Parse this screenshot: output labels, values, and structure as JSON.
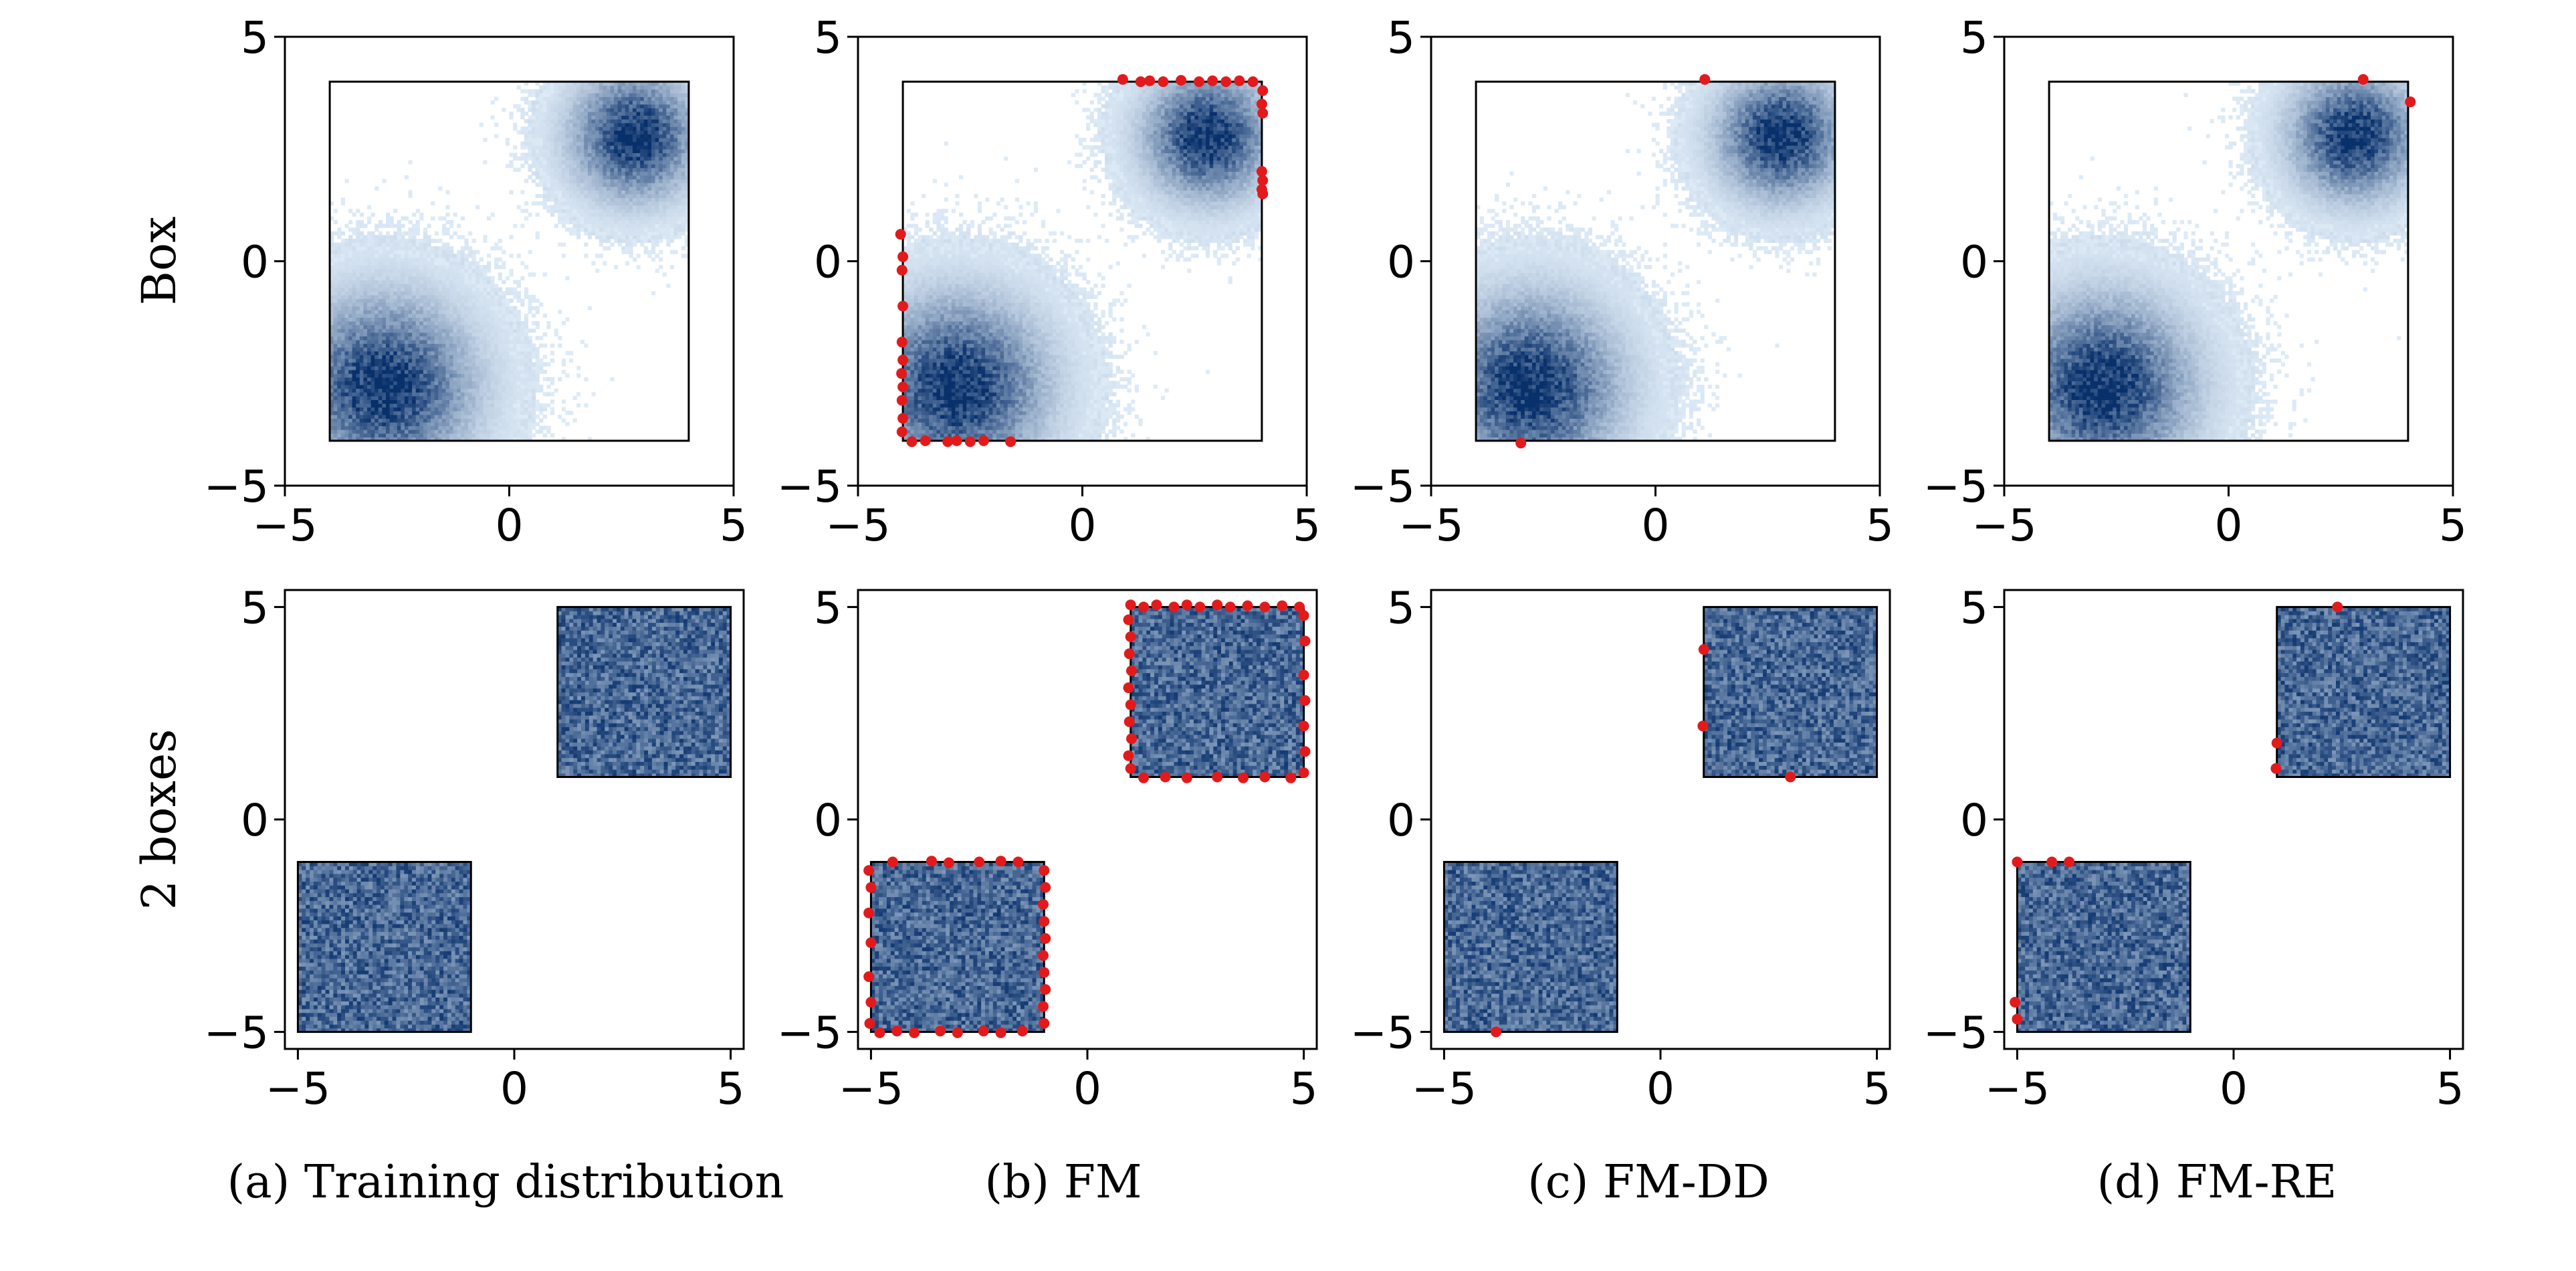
{
  "figure": {
    "row_labels": [
      "Box",
      "2 boxes"
    ],
    "captions": [
      "(a) Training distribution",
      "(b) FM",
      "(c) FM-DD",
      "(d) FM-RE"
    ]
  },
  "colors": {
    "density_light": "#deebf7",
    "density_dark": "#08306b",
    "sample_points": "#e31a1c",
    "box_outline": "#000000"
  },
  "chart_data": [
    {
      "panel": "Box / Training distribution",
      "type": "heatmap",
      "xlim": [
        -5,
        5
      ],
      "ylim": [
        -5,
        5
      ],
      "xticks": [
        -5,
        0,
        5
      ],
      "yticks": [
        -5,
        0,
        5
      ],
      "xtick_labels": [
        "−5",
        "0",
        "5"
      ],
      "ytick_labels": [
        "−5",
        "0",
        "5"
      ],
      "constraint": {
        "shape": "box",
        "x": [
          -4,
          4
        ],
        "y": [
          -4,
          4
        ]
      },
      "density": {
        "kind": "gaussian-mixture",
        "centers": [
          [
            -2.8,
            -2.8
          ],
          [
            2.8,
            2.8
          ]
        ],
        "spreads": [
          1.2,
          0.85
        ]
      },
      "violation_points": []
    },
    {
      "panel": "Box / FM",
      "type": "heatmap",
      "xlim": [
        -5,
        5
      ],
      "ylim": [
        -5,
        5
      ],
      "xticks": [
        -5,
        0,
        5
      ],
      "yticks": [
        -5,
        0,
        5
      ],
      "xtick_labels": [
        "−5",
        "0",
        "5"
      ],
      "ytick_labels": [
        "−5",
        "0",
        "5"
      ],
      "constraint": {
        "shape": "box",
        "x": [
          -4,
          4
        ],
        "y": [
          -4,
          4
        ]
      },
      "density": {
        "kind": "gaussian-mixture",
        "centers": [
          [
            -2.8,
            -2.8
          ],
          [
            2.8,
            2.8
          ]
        ],
        "spreads": [
          1.2,
          0.85
        ]
      },
      "violation_points": [
        [
          0.9,
          4.05
        ],
        [
          1.3,
          4.0
        ],
        [
          1.5,
          4.02
        ],
        [
          1.8,
          4.0
        ],
        [
          2.2,
          4.03
        ],
        [
          2.6,
          4.0
        ],
        [
          2.9,
          4.02
        ],
        [
          3.2,
          4.0
        ],
        [
          3.5,
          4.02
        ],
        [
          3.8,
          4.0
        ],
        [
          4.02,
          3.8
        ],
        [
          4.0,
          3.5
        ],
        [
          4.02,
          3.3
        ],
        [
          4.0,
          2.0
        ],
        [
          4.02,
          1.8
        ],
        [
          4.0,
          1.6
        ],
        [
          4.02,
          1.5
        ],
        [
          -4.05,
          0.6
        ],
        [
          -4.0,
          0.1
        ],
        [
          -4.02,
          -0.2
        ],
        [
          -4.0,
          -1.0
        ],
        [
          -4.02,
          -1.8
        ],
        [
          -4.0,
          -2.2
        ],
        [
          -4.03,
          -2.5
        ],
        [
          -4.0,
          -2.8
        ],
        [
          -4.02,
          -3.1
        ],
        [
          -4.0,
          -3.5
        ],
        [
          -4.02,
          -3.8
        ],
        [
          -3.8,
          -4.02
        ],
        [
          -3.5,
          -4.0
        ],
        [
          -3.0,
          -4.02
        ],
        [
          -2.8,
          -4.0
        ],
        [
          -2.5,
          -4.02
        ],
        [
          -2.2,
          -4.0
        ],
        [
          -1.6,
          -4.02
        ]
      ]
    },
    {
      "panel": "Box / FM-DD",
      "type": "heatmap",
      "xlim": [
        -5,
        5
      ],
      "ylim": [
        -5,
        5
      ],
      "xticks": [
        -5,
        0,
        5
      ],
      "yticks": [
        -5,
        0,
        5
      ],
      "xtick_labels": [
        "−5",
        "0",
        "5"
      ],
      "ytick_labels": [
        "−5",
        "0",
        "5"
      ],
      "constraint": {
        "shape": "box",
        "x": [
          -4,
          4
        ],
        "y": [
          -4,
          4
        ]
      },
      "density": {
        "kind": "gaussian-mixture",
        "centers": [
          [
            -2.8,
            -2.8
          ],
          [
            2.8,
            2.8
          ]
        ],
        "spreads": [
          1.2,
          0.85
        ]
      },
      "violation_points": [
        [
          1.1,
          4.05
        ],
        [
          -3.0,
          -4.05
        ]
      ]
    },
    {
      "panel": "Box / FM-RE",
      "type": "heatmap",
      "xlim": [
        -5,
        5
      ],
      "ylim": [
        -5,
        5
      ],
      "xticks": [
        -5,
        0,
        5
      ],
      "yticks": [
        -5,
        0,
        5
      ],
      "xtick_labels": [
        "−5",
        "0",
        "5"
      ],
      "ytick_labels": [
        "−5",
        "0",
        "5"
      ],
      "constraint": {
        "shape": "box",
        "x": [
          -4,
          4
        ],
        "y": [
          -4,
          4
        ]
      },
      "density": {
        "kind": "gaussian-mixture",
        "centers": [
          [
            -2.8,
            -2.8
          ],
          [
            2.8,
            2.8
          ]
        ],
        "spreads": [
          1.2,
          0.85
        ]
      },
      "violation_points": [
        [
          3.0,
          4.05
        ],
        [
          4.05,
          3.55
        ]
      ]
    },
    {
      "panel": "2 boxes / Training distribution",
      "type": "heatmap",
      "xlim": [
        -5.3,
        5.3
      ],
      "ylim": [
        -5.4,
        5.4
      ],
      "xticks": [
        -5,
        0,
        5
      ],
      "yticks": [
        -5,
        0,
        5
      ],
      "xtick_labels": [
        "−5",
        "0",
        "5"
      ],
      "ytick_labels": [
        "−5",
        "0",
        "5"
      ],
      "density": {
        "kind": "uniform-boxes",
        "boxes": [
          {
            "x": [
              -5,
              -1
            ],
            "y": [
              -5,
              -1
            ]
          },
          {
            "x": [
              1,
              5
            ],
            "y": [
              1,
              5
            ]
          }
        ]
      },
      "violation_points": []
    },
    {
      "panel": "2 boxes / FM",
      "type": "heatmap",
      "xlim": [
        -5.3,
        5.3
      ],
      "ylim": [
        -5.4,
        5.4
      ],
      "xticks": [
        -5,
        0,
        5
      ],
      "yticks": [
        -5,
        0,
        5
      ],
      "xtick_labels": [
        "−5",
        "0",
        "5"
      ],
      "ytick_labels": [
        "−5",
        "0",
        "5"
      ],
      "density": {
        "kind": "uniform-boxes",
        "boxes": [
          {
            "x": [
              -5,
              -1
            ],
            "y": [
              -5,
              -1
            ]
          },
          {
            "x": [
              1,
              5
            ],
            "y": [
              1,
              5
            ]
          }
        ]
      },
      "violation_points": [
        [
          1.0,
          5.05
        ],
        [
          1.3,
          5.0
        ],
        [
          1.6,
          5.05
        ],
        [
          2.0,
          5.0
        ],
        [
          2.3,
          5.05
        ],
        [
          2.6,
          5.0
        ],
        [
          3.0,
          5.05
        ],
        [
          3.3,
          5.0
        ],
        [
          3.7,
          5.03
        ],
        [
          4.1,
          5.0
        ],
        [
          4.5,
          5.03
        ],
        [
          4.9,
          5.0
        ],
        [
          0.95,
          4.7
        ],
        [
          1.0,
          4.3
        ],
        [
          0.97,
          3.9
        ],
        [
          1.02,
          3.5
        ],
        [
          0.95,
          3.1
        ],
        [
          1.0,
          2.7
        ],
        [
          0.97,
          2.3
        ],
        [
          1.02,
          1.9
        ],
        [
          0.95,
          1.5
        ],
        [
          1.0,
          1.2
        ],
        [
          5.0,
          4.8
        ],
        [
          5.03,
          4.2
        ],
        [
          5.0,
          3.4
        ],
        [
          5.03,
          2.8
        ],
        [
          5.0,
          2.2
        ],
        [
          5.03,
          1.6
        ],
        [
          5.0,
          1.1
        ],
        [
          1.3,
          0.98
        ],
        [
          1.8,
          1.0
        ],
        [
          2.3,
          0.98
        ],
        [
          3.0,
          1.0
        ],
        [
          3.6,
          0.98
        ],
        [
          4.1,
          1.0
        ],
        [
          4.7,
          0.98
        ],
        [
          -5.05,
          -1.2
        ],
        [
          -5.0,
          -1.6
        ],
        [
          -5.05,
          -2.2
        ],
        [
          -5.0,
          -2.9
        ],
        [
          -5.05,
          -3.7
        ],
        [
          -5.0,
          -4.3
        ],
        [
          -5.03,
          -4.8
        ],
        [
          -4.8,
          -5.02
        ],
        [
          -4.4,
          -4.98
        ],
        [
          -4.0,
          -5.02
        ],
        [
          -3.4,
          -4.98
        ],
        [
          -3.0,
          -5.02
        ],
        [
          -2.4,
          -4.98
        ],
        [
          -2.0,
          -5.02
        ],
        [
          -1.5,
          -4.98
        ],
        [
          -4.5,
          -1.0
        ],
        [
          -3.6,
          -0.98
        ],
        [
          -3.2,
          -1.02
        ],
        [
          -2.5,
          -1.0
        ],
        [
          -2.0,
          -0.98
        ],
        [
          -1.6,
          -1.0
        ],
        [
          -1.0,
          -1.2
        ],
        [
          -0.97,
          -1.6
        ],
        [
          -1.02,
          -2.0
        ],
        [
          -1.0,
          -2.4
        ],
        [
          -0.97,
          -2.8
        ],
        [
          -1.02,
          -3.2
        ],
        [
          -1.0,
          -3.6
        ],
        [
          -0.97,
          -4.0
        ],
        [
          -1.02,
          -4.4
        ],
        [
          -1.0,
          -4.8
        ]
      ]
    },
    {
      "panel": "2 boxes / FM-DD",
      "type": "heatmap",
      "xlim": [
        -5.3,
        5.3
      ],
      "ylim": [
        -5.4,
        5.4
      ],
      "xticks": [
        -5,
        0,
        5
      ],
      "yticks": [
        -5,
        0,
        5
      ],
      "xtick_labels": [
        "−5",
        "0",
        "5"
      ],
      "ytick_labels": [
        "−5",
        "0",
        "5"
      ],
      "density": {
        "kind": "uniform-boxes",
        "boxes": [
          {
            "x": [
              -5,
              -1
            ],
            "y": [
              -5,
              -1
            ]
          },
          {
            "x": [
              1,
              5
            ],
            "y": [
              1,
              5
            ]
          }
        ]
      },
      "violation_points": [
        [
          1.0,
          4.0
        ],
        [
          0.98,
          2.2
        ],
        [
          3.0,
          1.0
        ],
        [
          -3.8,
          -5.0
        ]
      ]
    },
    {
      "panel": "2 boxes / FM-RE",
      "type": "heatmap",
      "xlim": [
        -5.3,
        5.3
      ],
      "ylim": [
        -5.4,
        5.4
      ],
      "xticks": [
        -5,
        0,
        5
      ],
      "yticks": [
        -5,
        0,
        5
      ],
      "xtick_labels": [
        "−5",
        "0",
        "5"
      ],
      "ytick_labels": [
        "−5",
        "0",
        "5"
      ],
      "density": {
        "kind": "uniform-boxes",
        "boxes": [
          {
            "x": [
              -5,
              -1
            ],
            "y": [
              -5,
              -1
            ]
          },
          {
            "x": [
              1,
              5
            ],
            "y": [
              1,
              5
            ]
          }
        ]
      },
      "violation_points": [
        [
          2.4,
          5.0
        ],
        [
          1.0,
          1.8
        ],
        [
          0.98,
          1.2
        ],
        [
          -5.0,
          -1.0
        ],
        [
          -4.2,
          -1.0
        ],
        [
          -3.8,
          -1.0
        ],
        [
          -5.05,
          -4.3
        ],
        [
          -5.0,
          -4.7
        ]
      ]
    }
  ]
}
